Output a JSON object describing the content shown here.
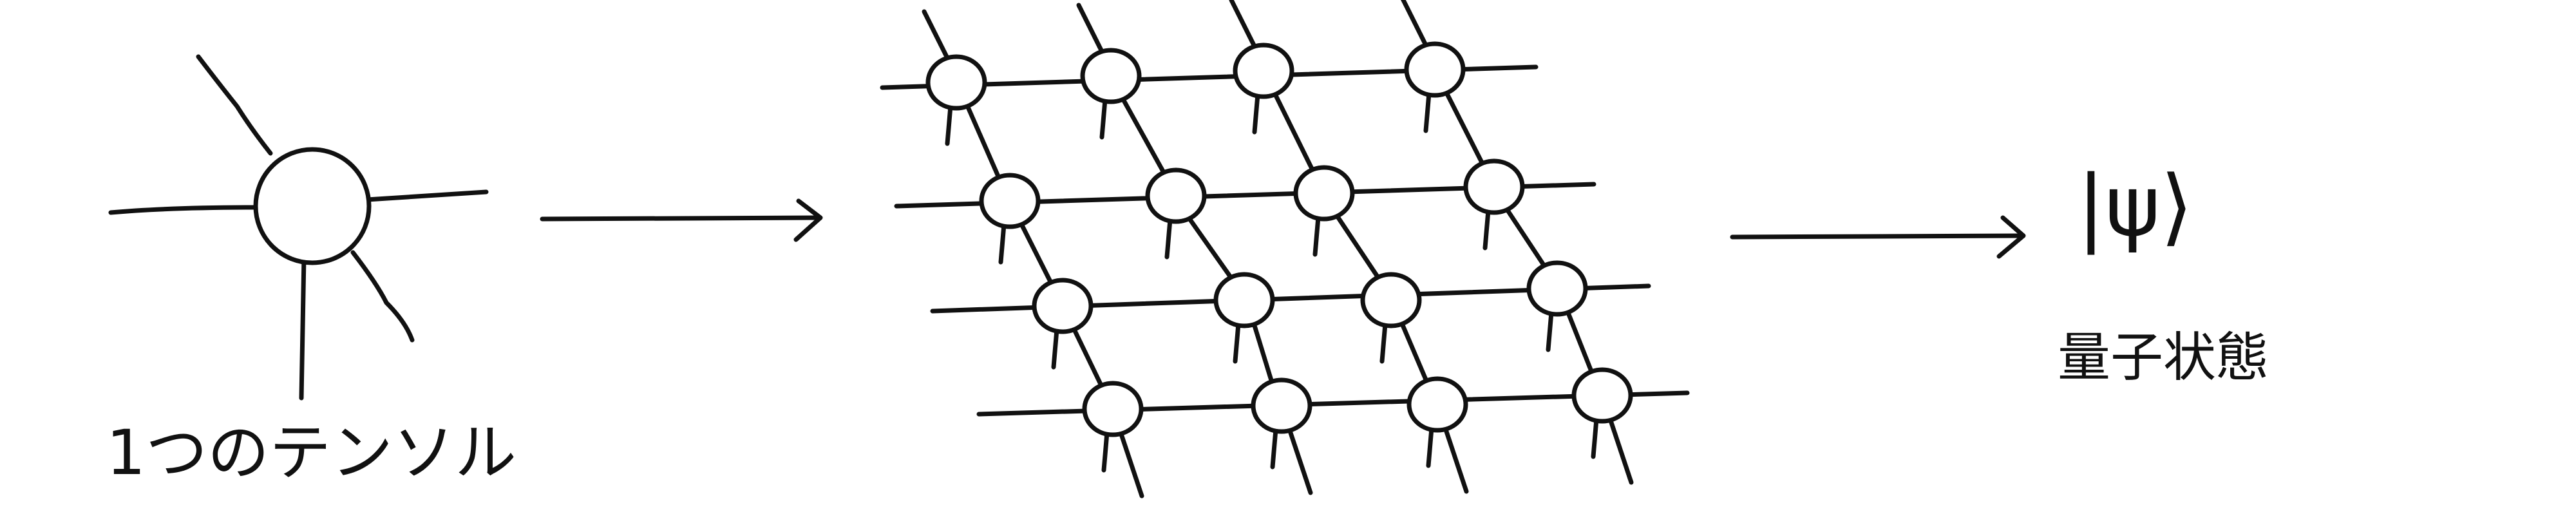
{
  "labels": {
    "single_tensor": "1つのテンソル",
    "ket": "|ψ⟩",
    "quantum_state": "量子状態"
  },
  "network": {
    "rows": 4,
    "cols": 4
  },
  "colors": {
    "ink": "#111111",
    "background": "#ffffff"
  }
}
